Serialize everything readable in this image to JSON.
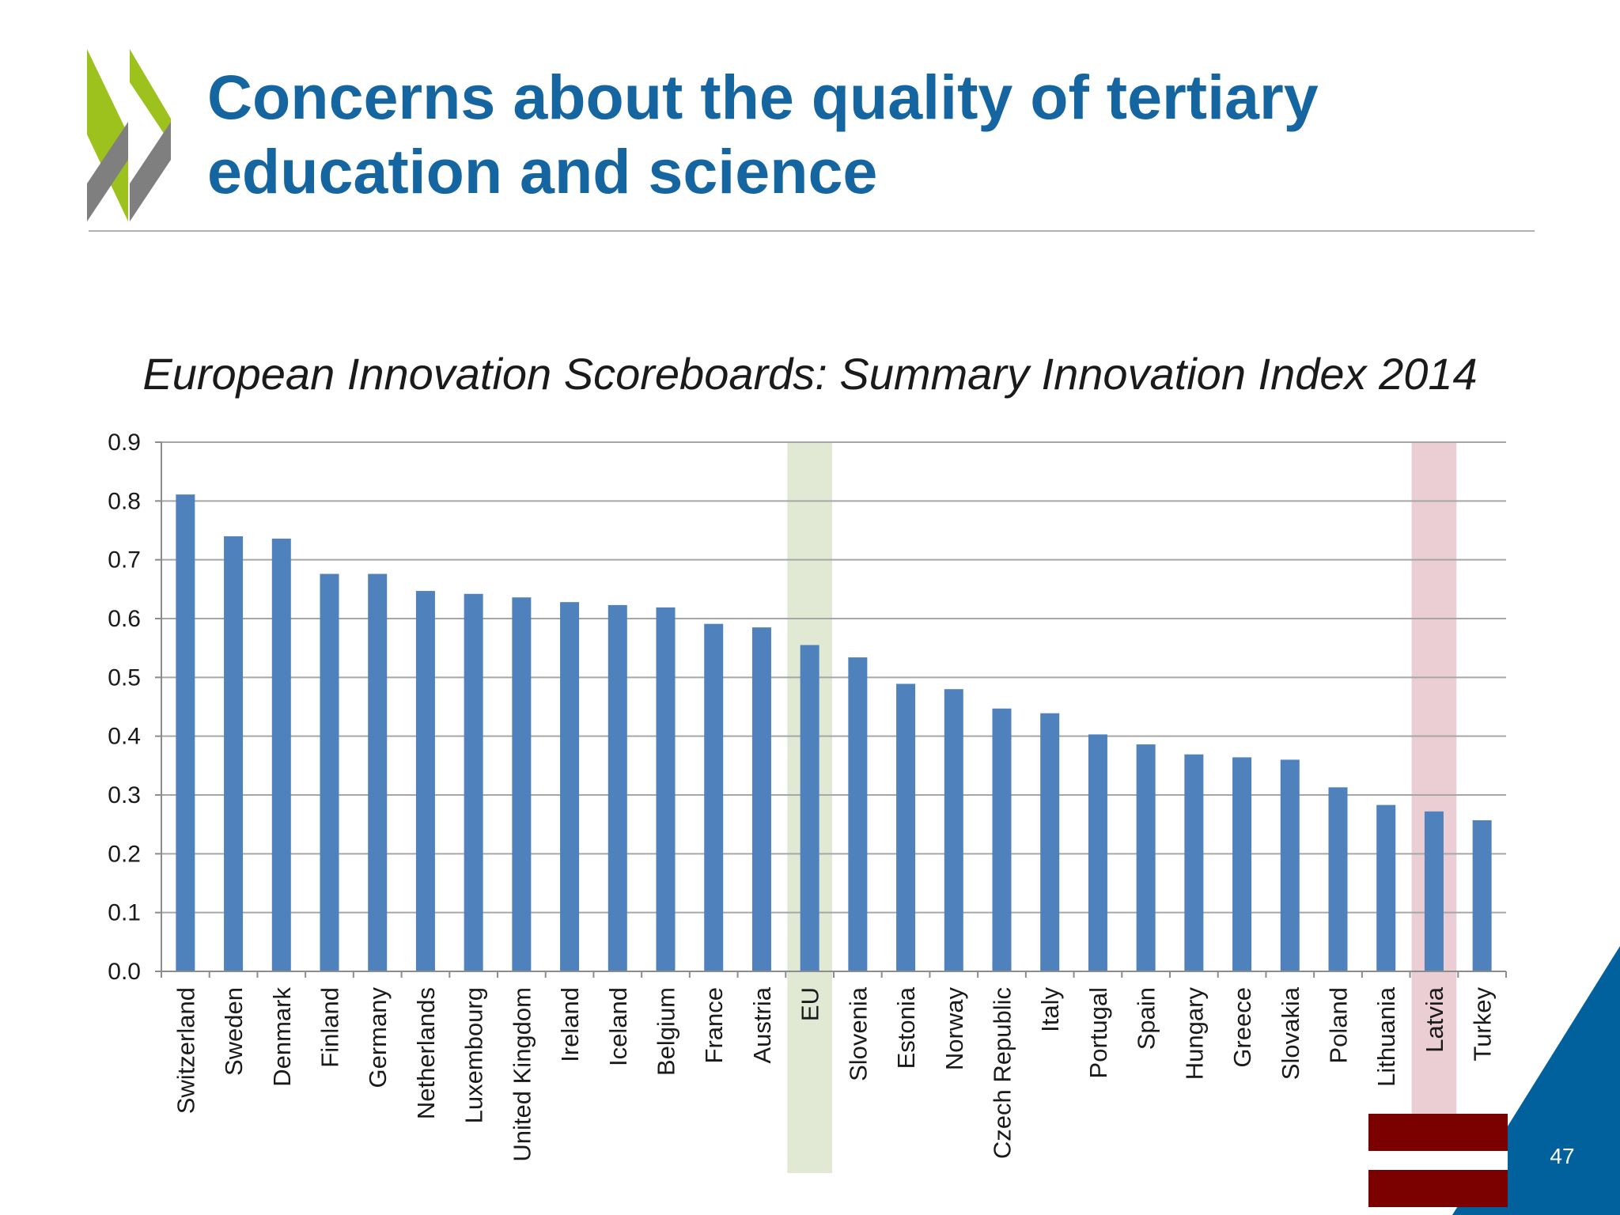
{
  "slide": {
    "title_lines": [
      "Concerns about the quality of tertiary",
      "education and science"
    ],
    "page_number": "47",
    "colors": {
      "title": "#1565a0",
      "logo_green": "#9dc21d",
      "logo_grey": "#7f7f7f",
      "corner": "#01619d"
    }
  },
  "chart_data": {
    "type": "bar",
    "title": "European Innovation Scoreboards: Summary Innovation Index 2014",
    "xlabel": "",
    "ylabel": "",
    "ylim": [
      0,
      0.9
    ],
    "yticks": [
      "0.0",
      "0.1",
      "0.2",
      "0.3",
      "0.4",
      "0.5",
      "0.6",
      "0.7",
      "0.8",
      "0.9"
    ],
    "grid": true,
    "bar_color": "#4f81bd",
    "categories": [
      "Switzerland",
      "Sweden",
      "Denmark",
      "Finland",
      "Germany",
      "Netherlands",
      "Luxembourg",
      "United Kingdom",
      "Ireland",
      "Iceland",
      "Belgium",
      "France",
      "Austria",
      "EU",
      "Slovenia",
      "Estonia",
      "Norway",
      "Czech Republic",
      "Italy",
      "Portugal",
      "Spain",
      "Hungary",
      "Greece",
      "Slovakia",
      "Poland",
      "Lithuania",
      "Latvia",
      "Turkey"
    ],
    "values": [
      0.811,
      0.74,
      0.736,
      0.676,
      0.676,
      0.647,
      0.642,
      0.636,
      0.628,
      0.623,
      0.619,
      0.591,
      0.585,
      0.555,
      0.534,
      0.489,
      0.48,
      0.447,
      0.439,
      0.403,
      0.386,
      0.369,
      0.364,
      0.36,
      0.313,
      0.283,
      0.272,
      0.257
    ],
    "highlights": [
      {
        "category": "EU",
        "color": "#c9d7b3"
      },
      {
        "category": "Latvia",
        "color": "#d9a5b0"
      }
    ]
  },
  "flag": {
    "icon": "latvia-flag-icon",
    "colors": {
      "band": "#7b0000",
      "stripe": "#ffffff"
    }
  }
}
